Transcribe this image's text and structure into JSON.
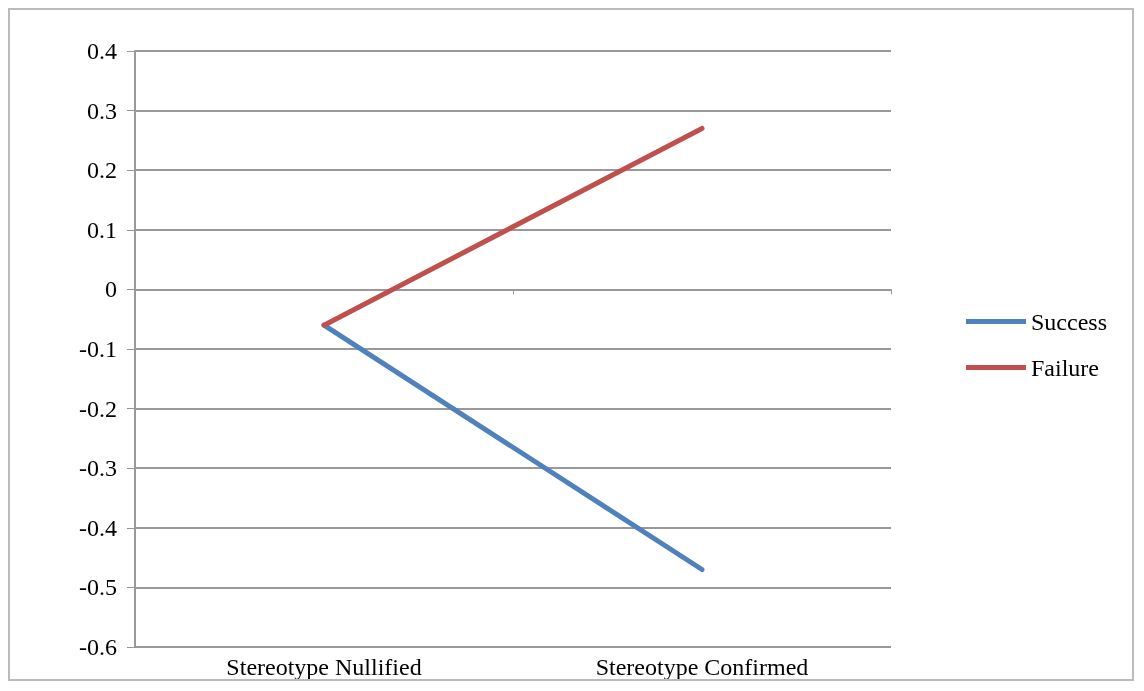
{
  "chart_data": {
    "type": "line",
    "categories": [
      "Stereotype Nullified",
      "Stereotype Confirmed"
    ],
    "series": [
      {
        "name": "Success",
        "color": "#4f81bd",
        "values": [
          -0.06,
          -0.47
        ]
      },
      {
        "name": "Failure",
        "color": "#c0504d",
        "values": [
          -0.06,
          0.27
        ]
      }
    ],
    "ylim": [
      -0.6,
      0.4
    ],
    "yticks": [
      -0.6,
      -0.5,
      -0.4,
      -0.3,
      -0.2,
      -0.1,
      0,
      0.1,
      0.2,
      0.3,
      0.4
    ],
    "grid": "y",
    "legend": "right",
    "marker": "none",
    "line_style": "solid"
  }
}
